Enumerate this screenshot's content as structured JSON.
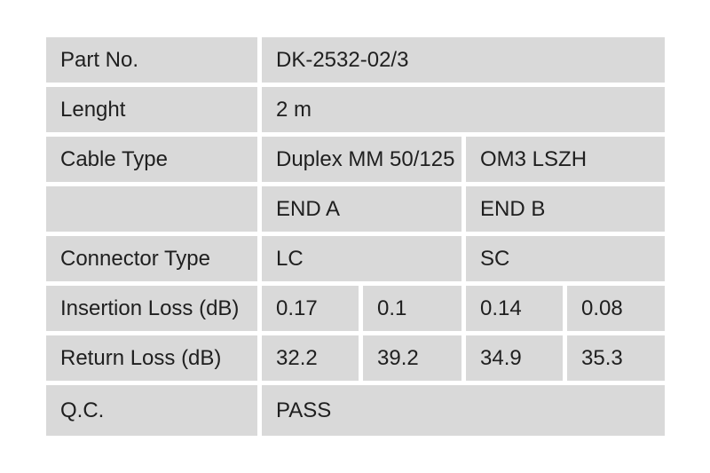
{
  "colors": {
    "cell_bg": "#d9d9d9",
    "text": "#1f1f1f",
    "page_bg": "#ffffff"
  },
  "table": {
    "part_no": {
      "label": "Part No.",
      "value": "DK-2532-02/3"
    },
    "length": {
      "label": "Lenght",
      "value": "2 m"
    },
    "cable_type": {
      "label": "Cable Type",
      "left": "Duplex MM 50/125",
      "right": "OM3 LSZH"
    },
    "ends": {
      "label": "",
      "end_a": "END A",
      "end_b": "END B"
    },
    "connector_type": {
      "label": "Connector Type",
      "end_a": "LC",
      "end_b": "SC"
    },
    "insertion_loss": {
      "label": "Insertion Loss (dB)",
      "end_a": [
        "0.17",
        "0.1"
      ],
      "end_b": [
        "0.14",
        "0.08"
      ]
    },
    "return_loss": {
      "label": "Return Loss (dB)",
      "end_a": [
        "32.2",
        "39.2"
      ],
      "end_b": [
        "34.9",
        "35.3"
      ]
    },
    "qc": {
      "label": "Q.C.",
      "value": "PASS"
    }
  }
}
